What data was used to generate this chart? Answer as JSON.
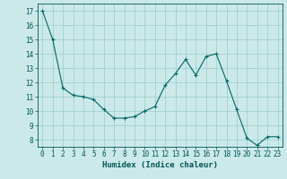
{
  "x": [
    0,
    1,
    2,
    3,
    4,
    5,
    6,
    7,
    8,
    9,
    10,
    11,
    12,
    13,
    14,
    15,
    16,
    17,
    18,
    19,
    20,
    21,
    22,
    23
  ],
  "y": [
    17.0,
    15.0,
    11.6,
    11.1,
    11.0,
    10.8,
    10.1,
    9.5,
    9.5,
    9.6,
    10.0,
    10.3,
    11.8,
    12.6,
    13.6,
    12.5,
    13.8,
    14.0,
    12.1,
    10.1,
    8.1,
    7.6,
    8.2,
    8.2
  ],
  "xlabel": "Humidex (Indice chaleur)",
  "bg_color": "#cce9e9",
  "line_color": "#006666",
  "marker_color": "#006666",
  "grid_color": "#99cccc",
  "ylim": [
    7.5,
    17.5
  ],
  "xlim": [
    -0.5,
    23.5
  ],
  "yticks": [
    8,
    9,
    10,
    11,
    12,
    13,
    14,
    15,
    16,
    17
  ],
  "xticks": [
    0,
    1,
    2,
    3,
    4,
    5,
    6,
    7,
    8,
    9,
    10,
    11,
    12,
    13,
    14,
    15,
    16,
    17,
    18,
    19,
    20,
    21,
    22,
    23
  ],
  "tick_color": "#005555",
  "label_fontsize": 6.5,
  "tick_fontsize": 5.5
}
